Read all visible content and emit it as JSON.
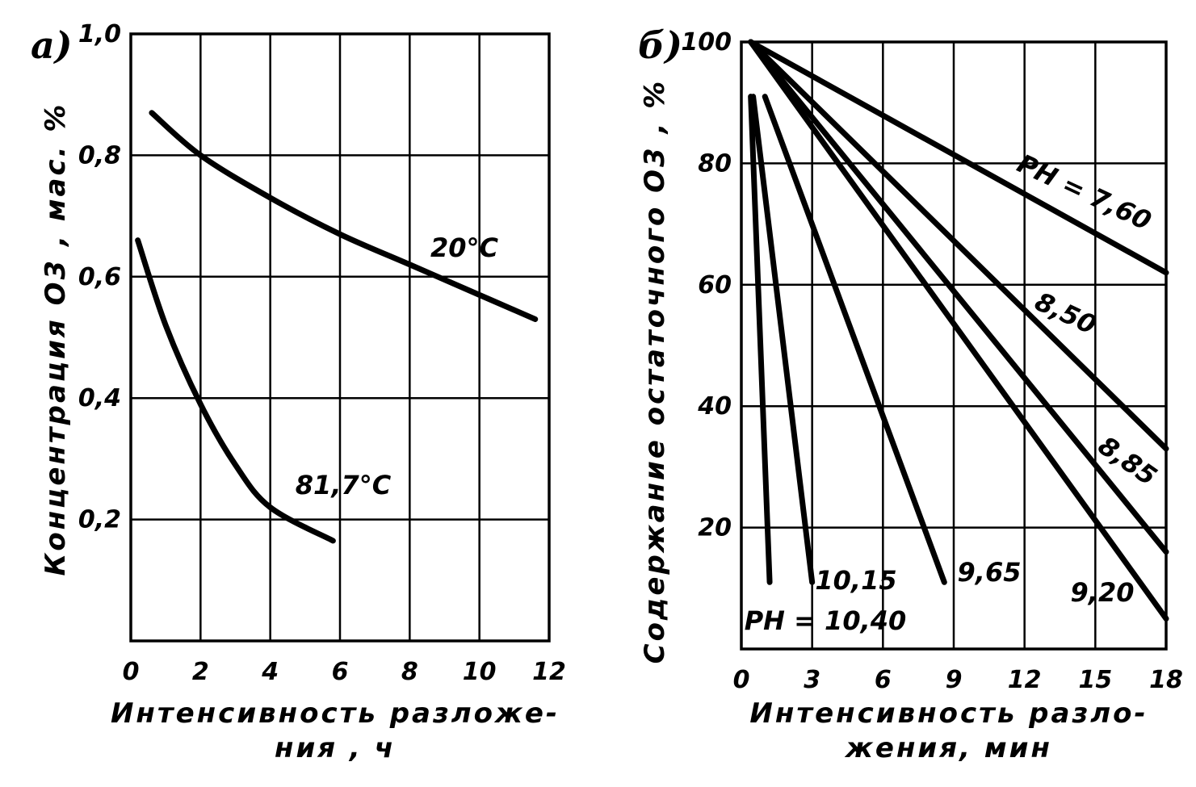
{
  "chart_data": [
    {
      "panel_label": "а)",
      "type": "line",
      "xlabel_line1": "Интенсивность разложе-",
      "xlabel_line2": "ния , ч",
      "ylabel": "Концентрация O3 , мас. %",
      "xlim": [
        0,
        12
      ],
      "ylim": [
        0,
        1.0
      ],
      "x_ticks": [
        "0",
        "2",
        "4",
        "6",
        "8",
        "10",
        "12"
      ],
      "y_ticks": [
        "0,2",
        "0,4",
        "0,6",
        "0,8",
        "1,0"
      ],
      "grid": true,
      "series": [
        {
          "name": "20°C",
          "x": [
            0.6,
            2,
            4,
            6,
            8,
            10,
            11.6
          ],
          "y": [
            0.87,
            0.8,
            0.73,
            0.67,
            0.62,
            0.57,
            0.53
          ]
        },
        {
          "name": "81,7°C",
          "x": [
            0.2,
            1,
            2,
            3,
            4,
            5.8
          ],
          "y": [
            0.66,
            0.52,
            0.39,
            0.29,
            0.22,
            0.165
          ]
        }
      ]
    },
    {
      "panel_label": "б)",
      "type": "line",
      "xlabel_line1": "Интенсивность разло-",
      "xlabel_line2": "жения, мин",
      "ylabel": "Содержание остаточного O3 , %",
      "xlim": [
        0,
        18
      ],
      "ylim": [
        0,
        100
      ],
      "x_ticks": [
        "0",
        "3",
        "6",
        "9",
        "12",
        "15",
        "18"
      ],
      "y_ticks": [
        "20",
        "40",
        "60",
        "80",
        "100"
      ],
      "grid": true,
      "series": [
        {
          "name": "PH = 7,60",
          "x": [
            0.4,
            18
          ],
          "y": [
            100,
            62
          ]
        },
        {
          "name": "8,50",
          "x": [
            0.4,
            18
          ],
          "y": [
            100,
            33
          ]
        },
        {
          "name": "8,85",
          "x": [
            0.4,
            18
          ],
          "y": [
            100,
            16
          ]
        },
        {
          "name": "9,20",
          "x": [
            0.4,
            18
          ],
          "y": [
            100,
            5
          ]
        },
        {
          "name": "9,65",
          "x": [
            1,
            8.6
          ],
          "y": [
            91,
            11
          ]
        },
        {
          "name": "10,15",
          "x": [
            0.5,
            3
          ],
          "y": [
            91,
            11
          ]
        },
        {
          "name": "PH = 10,40",
          "x": [
            0.4,
            1.2
          ],
          "y": [
            91,
            11
          ]
        }
      ]
    }
  ]
}
